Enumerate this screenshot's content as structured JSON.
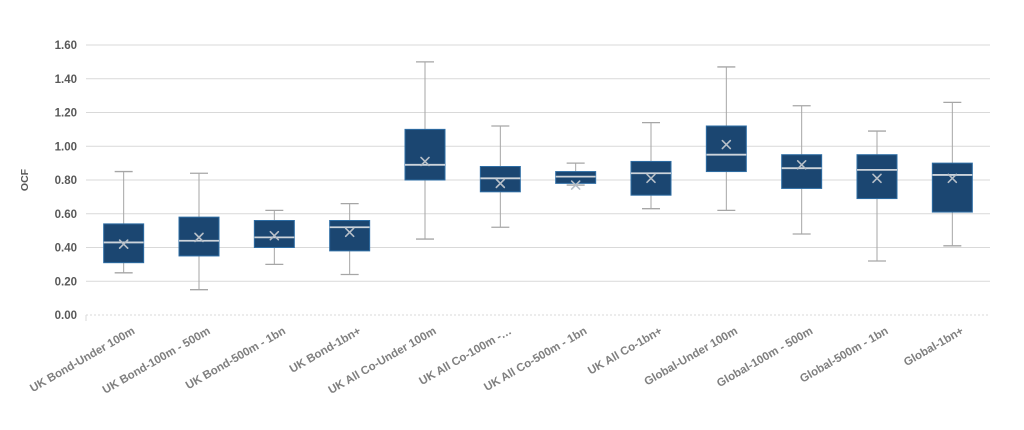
{
  "chart_data": {
    "type": "boxplot",
    "title": "",
    "xlabel": "",
    "ylabel": "OCF",
    "ylim": [
      0,
      1.6
    ],
    "grid": true,
    "legend": false,
    "yticks": [
      {
        "value": 0.0,
        "label": "0.00"
      },
      {
        "value": 0.2,
        "label": "0.20"
      },
      {
        "value": 0.4,
        "label": "0.40"
      },
      {
        "value": 0.6,
        "label": "0.60"
      },
      {
        "value": 0.8,
        "label": "0.80"
      },
      {
        "value": 1.0,
        "label": "1.00"
      },
      {
        "value": 1.2,
        "label": "1.20"
      },
      {
        "value": 1.4,
        "label": "1.40"
      },
      {
        "value": 1.6,
        "label": "1.60"
      }
    ],
    "categories": [
      "UK Bond-Under 100m",
      "UK Bond-100m - 500m",
      "UK Bond-500m - 1bn",
      "UK Bond-1bn+",
      "UK All Co-Under 100m",
      "UK All Co-100m -…",
      "UK All Co-500m - 1bn",
      "UK All Co-1bn+",
      "Global-Under 100m",
      "Global-100m - 500m",
      "Global-500m - 1bn",
      "Global-1bn+"
    ],
    "points": [
      {
        "label": "UK Bond-Under 100m",
        "low": 0.25,
        "q1": 0.31,
        "median": 0.43,
        "mean": 0.42,
        "q3": 0.54,
        "high": 0.85
      },
      {
        "label": "UK Bond-100m - 500m",
        "low": 0.15,
        "q1": 0.35,
        "median": 0.44,
        "mean": 0.46,
        "q3": 0.58,
        "high": 0.84
      },
      {
        "label": "UK Bond-500m - 1bn",
        "low": 0.3,
        "q1": 0.4,
        "median": 0.46,
        "mean": 0.47,
        "q3": 0.56,
        "high": 0.62
      },
      {
        "label": "UK Bond-1bn+",
        "low": 0.24,
        "q1": 0.38,
        "median": 0.52,
        "mean": 0.49,
        "q3": 0.56,
        "high": 0.66
      },
      {
        "label": "UK All Co-Under 100m",
        "low": 0.45,
        "q1": 0.8,
        "median": 0.89,
        "mean": 0.91,
        "q3": 1.1,
        "high": 1.5
      },
      {
        "label": "UK All Co-100m -…",
        "low": 0.52,
        "q1": 0.73,
        "median": 0.81,
        "mean": 0.78,
        "q3": 0.88,
        "high": 1.12
      },
      {
        "label": "UK All Co-500m - 1bn",
        "low": 0.77,
        "q1": 0.78,
        "median": 0.82,
        "mean": 0.77,
        "q3": 0.85,
        "high": 0.9
      },
      {
        "label": "UK All Co-1bn+",
        "low": 0.63,
        "q1": 0.71,
        "median": 0.84,
        "mean": 0.81,
        "q3": 0.91,
        "high": 1.14
      },
      {
        "label": "Global-Under 100m",
        "low": 0.62,
        "q1": 0.85,
        "median": 0.95,
        "mean": 1.01,
        "q3": 1.12,
        "high": 1.47
      },
      {
        "label": "Global-100m - 500m",
        "low": 0.48,
        "q1": 0.75,
        "median": 0.87,
        "mean": 0.89,
        "q3": 0.95,
        "high": 1.24
      },
      {
        "label": "Global-500m - 1bn",
        "low": 0.32,
        "q1": 0.69,
        "median": 0.86,
        "mean": 0.81,
        "q3": 0.95,
        "high": 1.09
      },
      {
        "label": "Global-1bn+",
        "low": 0.41,
        "q1": 0.61,
        "median": 0.83,
        "mean": 0.81,
        "q3": 0.9,
        "high": 1.26
      }
    ],
    "colors": {
      "box_fill": "#1b4671",
      "box_border": "#2e6da4",
      "median_line": "#cdd4db",
      "mean_marker": "#b7bfc8",
      "whisker": "#a6a6a6",
      "gridline": "#d9d9d9",
      "zero_gridline": "#d9d9d9",
      "y_label_color": "#595959",
      "x_label_color": "#7f7f7f",
      "background": "#ffffff"
    }
  }
}
